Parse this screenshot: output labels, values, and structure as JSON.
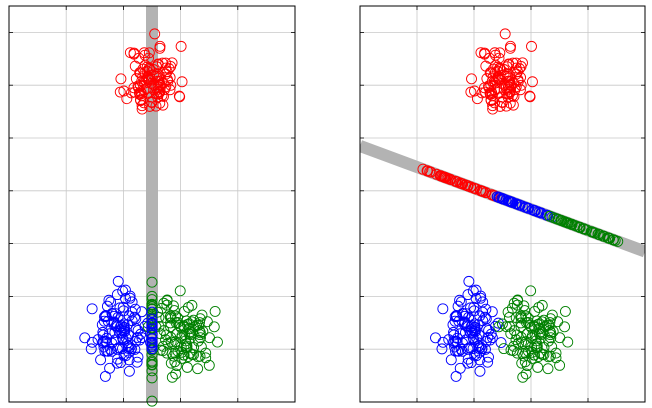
{
  "chart_data": [
    {
      "type": "scatter",
      "panel": "left",
      "grid": true,
      "xlim": [
        0,
        5
      ],
      "ylim": [
        0,
        7.5
      ],
      "projection_line": {
        "from": [
          2.5,
          7.5
        ],
        "to": [
          2.5,
          0
        ],
        "color": "#b3b3b3"
      },
      "series": [
        {
          "color": "#ff0000",
          "marker": "open-circle",
          "center": [
            2.5,
            6.1
          ],
          "spread": [
            0.22,
            0.32
          ],
          "count": 110,
          "seed": 11,
          "projected": false
        },
        {
          "color": "#0000ff",
          "marker": "open-circle",
          "center": [
            1.92,
            1.3
          ],
          "spread": [
            0.22,
            0.32
          ],
          "count": 110,
          "seed": 23,
          "projected": false
        },
        {
          "color": "#008000",
          "marker": "open-circle",
          "center": [
            3.05,
            1.28
          ],
          "spread": [
            0.26,
            0.34
          ],
          "count": 110,
          "seed": 37,
          "projected": false
        },
        {
          "color": "#008000",
          "marker": "open-circle",
          "center": [
            2.5,
            1.3
          ],
          "spread": [
            0,
            0.55
          ],
          "count": 28,
          "seed": 41,
          "projected": true
        },
        {
          "color": "#0000ff",
          "marker": "open-circle",
          "center": [
            2.5,
            1.3
          ],
          "spread": [
            0,
            0.3
          ],
          "count": 18,
          "seed": 43,
          "projected": true
        }
      ]
    },
    {
      "type": "scatter",
      "panel": "right",
      "grid": true,
      "xlim": [
        0,
        5
      ],
      "ylim": [
        0,
        7.5
      ],
      "projection_line": {
        "from": [
          0,
          4.85
        ],
        "to": [
          5,
          2.85
        ],
        "color": "#b3b3b3"
      },
      "series": [
        {
          "color": "#ff0000",
          "marker": "open-circle",
          "center": [
            2.5,
            6.1
          ],
          "spread": [
            0.22,
            0.32
          ],
          "count": 110,
          "seed": 11,
          "projected": false
        },
        {
          "color": "#0000ff",
          "marker": "open-circle",
          "center": [
            1.92,
            1.3
          ],
          "spread": [
            0.22,
            0.32
          ],
          "count": 110,
          "seed": 23,
          "projected": false
        },
        {
          "color": "#008000",
          "marker": "open-circle",
          "center": [
            3.05,
            1.28
          ],
          "spread": [
            0.26,
            0.34
          ],
          "count": 110,
          "seed": 37,
          "projected": false
        },
        {
          "color": "#ff0000",
          "marker": "open-circle",
          "center": [
            1.75,
            4.15
          ],
          "along_range": [
            1.05,
            2.5
          ],
          "count": 50,
          "seed": 51,
          "projected": true
        },
        {
          "color": "#0000ff",
          "marker": "open-circle",
          "center": [
            2.85,
            3.71
          ],
          "along_range": [
            2.4,
            3.45
          ],
          "count": 45,
          "seed": 53,
          "projected": true
        },
        {
          "color": "#008000",
          "marker": "open-circle",
          "center": [
            3.95,
            3.27
          ],
          "along_range": [
            3.3,
            4.55
          ],
          "count": 50,
          "seed": 57,
          "projected": true
        }
      ]
    }
  ]
}
